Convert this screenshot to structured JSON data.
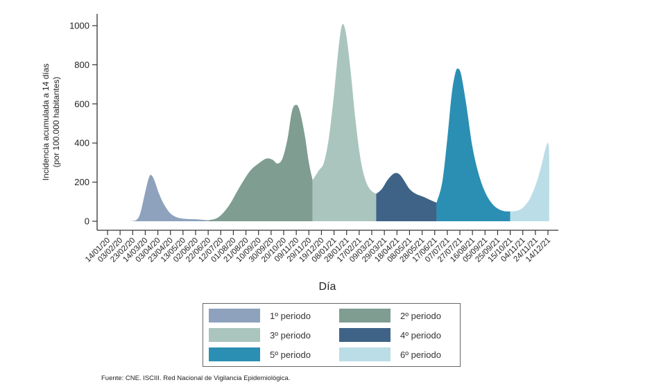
{
  "chart_data": {
    "type": "area",
    "xlabel": "Día",
    "ylabel_lines": [
      "Incidencia acumulada a 14 días",
      "(por 100.000 habitantes)"
    ],
    "ylim": [
      0,
      1000
    ],
    "yticks": [
      0,
      200,
      400,
      600,
      800,
      1000
    ],
    "x_unit": "days since 14/01/20",
    "xlim": [
      0,
      700
    ],
    "xtick_labels": [
      "14/01/20",
      "03/02/20",
      "23/02/20",
      "14/03/20",
      "03/04/20",
      "23/04/20",
      "13/05/20",
      "02/06/20",
      "22/06/20",
      "12/07/20",
      "01/08/20",
      "21/08/20",
      "10/09/20",
      "30/09/20",
      "20/10/20",
      "09/11/20",
      "29/11/20",
      "19/12/20",
      "08/01/21",
      "28/01/21",
      "17/02/21",
      "09/03/21",
      "29/03/21",
      "18/04/21",
      "08/05/21",
      "28/05/21",
      "17/06/21",
      "07/07/21",
      "27/07/21",
      "16/08/21",
      "05/09/21",
      "25/09/21",
      "15/10/21",
      "04/11/21",
      "24/11/21",
      "14/12/21"
    ],
    "xtick_step_days": 20,
    "grid": false,
    "legend_position": "bottom",
    "series": [
      {
        "name": "1º periodo",
        "color": "#8ea2bd",
        "points": [
          [
            33,
            0
          ],
          [
            45,
            5
          ],
          [
            52,
            40
          ],
          [
            60,
            150
          ],
          [
            66,
            225
          ],
          [
            70,
            235
          ],
          [
            75,
            205
          ],
          [
            82,
            140
          ],
          [
            90,
            85
          ],
          [
            100,
            40
          ],
          [
            112,
            18
          ],
          [
            125,
            12
          ],
          [
            140,
            10
          ],
          [
            160,
            5
          ]
        ]
      },
      {
        "name": "2º periodo",
        "color": "#7f9d90",
        "points": [
          [
            160,
            5
          ],
          [
            176,
            20
          ],
          [
            193,
            80
          ],
          [
            210,
            175
          ],
          [
            226,
            255
          ],
          [
            240,
            295
          ],
          [
            252,
            320
          ],
          [
            262,
            315
          ],
          [
            270,
            295
          ],
          [
            278,
            320
          ],
          [
            286,
            420
          ],
          [
            293,
            560
          ],
          [
            299,
            595
          ],
          [
            305,
            570
          ],
          [
            313,
            450
          ],
          [
            320,
            300
          ],
          [
            326,
            210
          ]
        ]
      },
      {
        "name": "3º periodo",
        "color": "#a9c5be",
        "points": [
          [
            326,
            210
          ],
          [
            336,
            260
          ],
          [
            344,
            300
          ],
          [
            352,
            430
          ],
          [
            360,
            650
          ],
          [
            367,
            880
          ],
          [
            373,
            1005
          ],
          [
            379,
            960
          ],
          [
            386,
            780
          ],
          [
            394,
            520
          ],
          [
            402,
            320
          ],
          [
            410,
            210
          ],
          [
            418,
            160
          ],
          [
            427,
            140
          ]
        ]
      },
      {
        "name": "4º periodo",
        "color": "#3e6387",
        "points": [
          [
            427,
            140
          ],
          [
            436,
            165
          ],
          [
            446,
            215
          ],
          [
            456,
            245
          ],
          [
            464,
            240
          ],
          [
            472,
            205
          ],
          [
            480,
            165
          ],
          [
            490,
            140
          ],
          [
            502,
            125
          ],
          [
            512,
            110
          ],
          [
            523,
            95
          ]
        ]
      },
      {
        "name": "5º periodo",
        "color": "#2a8fb3",
        "points": [
          [
            523,
            95
          ],
          [
            532,
            200
          ],
          [
            540,
            420
          ],
          [
            547,
            650
          ],
          [
            553,
            760
          ],
          [
            557,
            780
          ],
          [
            562,
            750
          ],
          [
            570,
            600
          ],
          [
            580,
            380
          ],
          [
            590,
            240
          ],
          [
            600,
            150
          ],
          [
            610,
            95
          ],
          [
            620,
            65
          ],
          [
            630,
            52
          ],
          [
            640,
            50
          ]
        ]
      },
      {
        "name": "6º periodo",
        "color": "#badde8",
        "points": [
          [
            640,
            50
          ],
          [
            652,
            55
          ],
          [
            662,
            75
          ],
          [
            672,
            120
          ],
          [
            682,
            200
          ],
          [
            690,
            290
          ],
          [
            696,
            370
          ],
          [
            700,
            400
          ],
          [
            702,
            330
          ],
          [
            702,
            0
          ]
        ]
      }
    ]
  },
  "source": "Fuente: CNE. ISCIII. Red Nacional de Vigilancia Epidemiológica."
}
